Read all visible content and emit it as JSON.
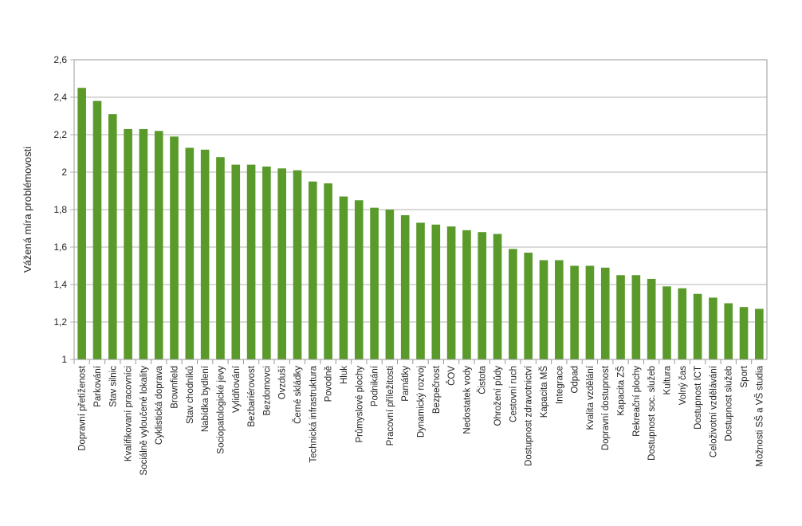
{
  "chart_data": {
    "type": "bar",
    "ylabel": "Vážená míra problémovosti",
    "xlabel": "",
    "title": "",
    "ylim": [
      1,
      2.6
    ],
    "yticks": [
      1,
      1.2,
      1.4,
      1.6,
      1.8,
      2,
      2.2,
      2.4,
      2.6
    ],
    "ytick_labels": [
      "1",
      "1,2",
      "1,4",
      "1,6",
      "1,8",
      "2",
      "2,2",
      "2,4",
      "2,6"
    ],
    "grid": true,
    "bar_color": "#5a9a2a",
    "categories": [
      "Dopravní přetíženost",
      "Parkování",
      "Stav silnic",
      "Kvalifikovaní pracovníci",
      "Sociálně vyloučené lokality",
      "Cyklistická doprava",
      "Brownfield",
      "Stav chodníků",
      "Nabídka bydlení",
      "Sociopatologické jevy",
      "Vylidňování",
      "Bezbariérovost",
      "Bezdomovci",
      "Ovzduší",
      "Černé skládky",
      "Technická infrastruktura",
      "Povodně",
      "Hluk",
      "Průmyslové plochy",
      "Podnikání",
      "Pracovní příležitosti",
      "Památky",
      "Dynamický rozvoj",
      "Bezpečnost",
      "ČOV",
      "Nedostatek vody",
      "Čistota",
      "Ohrožení půdy",
      "Cestovní ruch",
      "Dostupnost zdravotnictví",
      "Kapacita MŠ",
      "Integrace",
      "Odpad",
      "Kvalita vzdělání",
      "Dopravní dostupnost",
      "Kapacita ZŠ",
      "Rekreační plochy",
      "Dostupnost soc. služeb",
      "Kultura",
      "Volný čas",
      "Dostupnost ICT",
      "Celoživotní vzdělávání",
      "Dostupnost služeb",
      "Sport",
      "Možnosti SŠ a VŠ studia"
    ],
    "values": [
      2.45,
      2.38,
      2.31,
      2.23,
      2.23,
      2.22,
      2.19,
      2.13,
      2.12,
      2.08,
      2.04,
      2.04,
      2.03,
      2.02,
      2.01,
      1.95,
      1.94,
      1.87,
      1.85,
      1.81,
      1.8,
      1.77,
      1.73,
      1.72,
      1.71,
      1.69,
      1.68,
      1.67,
      1.59,
      1.57,
      1.53,
      1.53,
      1.5,
      1.5,
      1.49,
      1.45,
      1.45,
      1.43,
      1.39,
      1.38,
      1.35,
      1.33,
      1.3,
      1.28,
      1.27
    ]
  }
}
